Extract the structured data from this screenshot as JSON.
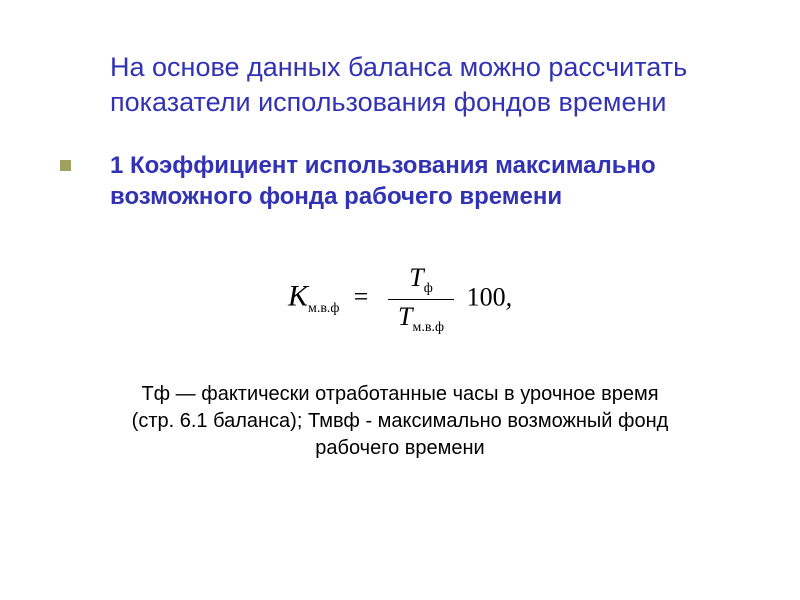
{
  "title": {
    "line1": "На основе данных баланса можно рассчитать",
    "line2": "показатели использования фондов времени"
  },
  "subtitle": {
    "line1": "1 Коэффициент использования максимально",
    "line2": "возможного фонда рабочего времени"
  },
  "formula": {
    "lhs_var": "K",
    "lhs_sub": "м.в.ф",
    "eq": "=",
    "num_var": "T",
    "num_sub": "ф",
    "den_var": "T",
    "den_sub": "м.в.ф",
    "factor": "100",
    "trail": ","
  },
  "caption": {
    "line1": "Тф — фактически отработанные часы в урочное время",
    "line2": "(стр. 6.1 баланса); Тмвф - максимально возможный фонд",
    "line3": "рабочего времени"
  },
  "colors": {
    "heading": "#3232b4",
    "bullet": "#a0a060",
    "text": "#000000",
    "background": "#ffffff"
  }
}
